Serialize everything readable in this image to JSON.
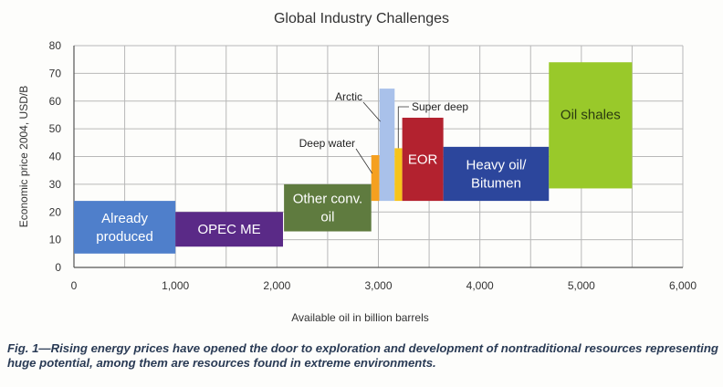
{
  "chart_data": {
    "type": "bar",
    "subtype": "variable-width-range",
    "title": "Global Industry Challenges",
    "xlabel": "Available oil in billion barrels",
    "ylabel": "Economic price 2004, USD/B",
    "xlim": [
      0,
      6000
    ],
    "ylim": [
      0,
      80
    ],
    "xticks": [
      0,
      1000,
      2000,
      3000,
      4000,
      5000,
      6000
    ],
    "xtick_labels": [
      "0",
      "1,000",
      "2,000",
      "3,000",
      "4,000",
      "5,000",
      "6,000"
    ],
    "yticks": [
      0,
      10,
      20,
      30,
      40,
      50,
      60,
      70,
      80
    ],
    "grid": true,
    "grid_step": {
      "x": 500,
      "y": 10
    },
    "series": [
      {
        "name": "Already produced",
        "label_lines": [
          "Already",
          "produced"
        ],
        "x0": 0,
        "x1": 1000,
        "y0": 5,
        "y1": 24,
        "color": "#4f7fcb",
        "text_color": "#ffffff",
        "label_position": "inside"
      },
      {
        "name": "OPEC ME",
        "label_lines": [
          "OPEC ME"
        ],
        "x0": 1000,
        "x1": 2060,
        "y0": 7.5,
        "y1": 20,
        "color": "#5a2a87",
        "text_color": "#ffffff",
        "label_position": "inside"
      },
      {
        "name": "Other conv. oil",
        "label_lines": [
          "Other conv.",
          "oil"
        ],
        "x0": 2070,
        "x1": 2930,
        "y0": 13,
        "y1": 30,
        "color": "#5f7b3f",
        "text_color": "#ffffff",
        "label_position": "inside"
      },
      {
        "name": "Deep water",
        "label_lines": [
          "Deep water"
        ],
        "x0": 2930,
        "x1": 3010,
        "y0": 24,
        "y1": 40.5,
        "color": "#f5a020",
        "text_color": "#222222",
        "label_position": "outside-left"
      },
      {
        "name": "Arctic",
        "label_lines": [
          "Arctic"
        ],
        "x0": 3010,
        "x1": 3160,
        "y0": 24,
        "y1": 64.5,
        "color": "#a9c1ea",
        "text_color": "#222222",
        "label_position": "outside-left"
      },
      {
        "name": "Super deep",
        "label_lines": [
          "Super deep"
        ],
        "x0": 3160,
        "x1": 3235,
        "y0": 24,
        "y1": 43,
        "color": "#f6c41a",
        "text_color": "#222222",
        "label_position": "outside-right"
      },
      {
        "name": "EOR",
        "label_lines": [
          "EOR"
        ],
        "x0": 3235,
        "x1": 3640,
        "y0": 24,
        "y1": 54,
        "color": "#b3222f",
        "text_color": "#ffffff",
        "label_position": "inside"
      },
      {
        "name": "Heavy oil/ Bitumen",
        "label_lines": [
          "Heavy oil/",
          "Bitumen"
        ],
        "x0": 3640,
        "x1": 4680,
        "y0": 24,
        "y1": 43.5,
        "color": "#2c469c",
        "text_color": "#ffffff",
        "label_position": "inside"
      },
      {
        "name": "Oil shales",
        "label_lines": [
          "Oil shales"
        ],
        "x0": 4680,
        "x1": 5500,
        "y0": 28.5,
        "y1": 74,
        "color": "#99c92a",
        "text_color": "#2a3a10",
        "label_position": "inside-upper"
      }
    ]
  },
  "caption": "Fig. 1—Rising energy prices have opened the door to exploration and development of nontraditional resources representing huge potential, among them are resources found in extreme environments."
}
